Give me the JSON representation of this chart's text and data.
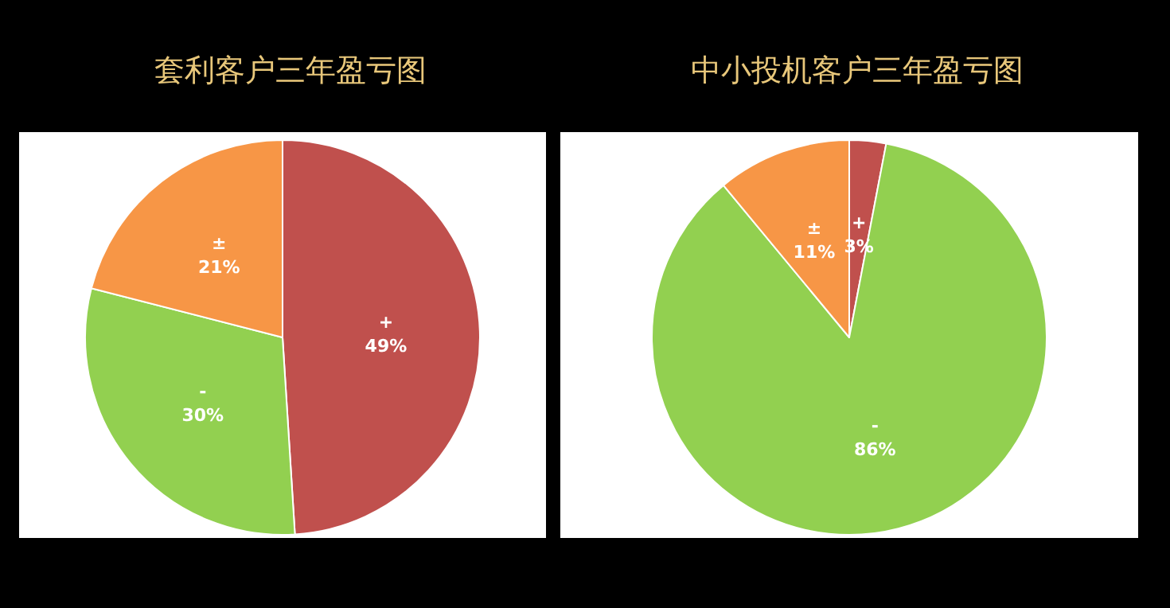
{
  "chart_data": [
    {
      "type": "pie",
      "title": "套利客户三年盈亏图",
      "categories": [
        "+",
        "-",
        "±"
      ],
      "values": [
        49,
        30,
        21
      ],
      "value_labels": [
        "49%",
        "30%",
        "21%"
      ],
      "colors": [
        "#c0504d",
        "#92d050",
        "#f79646"
      ]
    },
    {
      "type": "pie",
      "title": "中小投机客户三年盈亏图",
      "categories": [
        "+",
        "-",
        "±"
      ],
      "values": [
        3,
        86,
        11
      ],
      "value_labels": [
        "3%",
        "86%",
        "11%"
      ],
      "colors": [
        "#c0504d",
        "#92d050",
        "#f79646"
      ]
    }
  ]
}
